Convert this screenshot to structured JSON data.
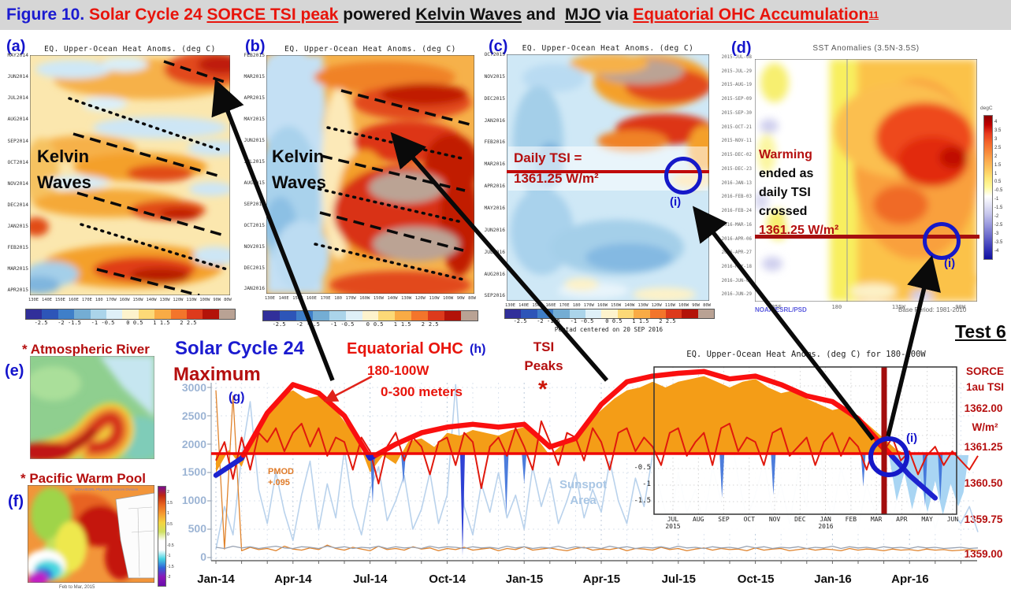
{
  "header": {
    "figure_label": "Figure 10.",
    "seg_red1": " Solar Cycle 24 ",
    "seg_red_underline": "SORCE TSI peak",
    "seg_black1": " powered ",
    "seg_kelvin": "Kelvin Waves",
    "seg_and": " and  ",
    "seg_mjo": "MJO",
    "seg_via": " via ",
    "seg_red2": "Equatorial OHC Accumulation",
    "superscript": "11"
  },
  "test_label": "Test 6",
  "chart_data": [
    {
      "id": "a",
      "type": "heatmap",
      "panel_label": "(a)",
      "title": "EQ. Upper-Ocean Heat Anoms. (deg C)",
      "annotation_line1": "Kelvin",
      "annotation_line2": "Waves",
      "y_labels": [
        "MAY2014",
        "JUN2014",
        "JUL2014",
        "AUG2014",
        "SEP2014",
        "OCT2014",
        "NOV2014",
        "DEC2014",
        "JAN2015",
        "FEB2015",
        "MAR2015",
        "APR2015"
      ],
      "x_labels": [
        "130E",
        "140E",
        "150E",
        "160E",
        "170E",
        "180",
        "170W",
        "160W",
        "150W",
        "140W",
        "130W",
        "120W",
        "110W",
        "100W",
        "90W",
        "80W"
      ],
      "colorbar_ticks": [
        "-2.5",
        "-2",
        "-1.5",
        "-1",
        "-0.5",
        "0",
        "0.5",
        "1",
        "1.5",
        "2",
        "2.5"
      ],
      "colorbar_colors": [
        "#312f9a",
        "#2d55b8",
        "#3f7fc9",
        "#74add4",
        "#abd4ea",
        "#dff0f8",
        "#fdf3cd",
        "#fcd977",
        "#f9ab45",
        "#f3752b",
        "#dd3a1c",
        "#b31309",
        "#b9a294"
      ]
    },
    {
      "id": "b",
      "type": "heatmap",
      "panel_label": "(b)",
      "title": "EQ. Upper-Ocean Heat Anoms. (deg C)",
      "annotation_line1": "Kelvin",
      "annotation_line2": "Waves",
      "y_labels": [
        "FEB2015",
        "MAR2015",
        "APR2015",
        "MAY2015",
        "JUN2015",
        "JUL2015",
        "AUG2015",
        "SEP2015",
        "OCT2015",
        "NOV2015",
        "DEC2015",
        "JAN2016"
      ],
      "x_labels": [
        "130E",
        "140E",
        "150E",
        "160E",
        "170E",
        "180",
        "170W",
        "160W",
        "150W",
        "140W",
        "130W",
        "120W",
        "110W",
        "100W",
        "90W",
        "80W"
      ],
      "colorbar_ticks": [
        "-2.5",
        "-2",
        "-1.5",
        "-1",
        "-0.5",
        "0",
        "0.5",
        "1",
        "1.5",
        "2",
        "2.5"
      ]
    },
    {
      "id": "c",
      "type": "heatmap",
      "panel_label": "(c)",
      "title": "EQ. Upper-Ocean Heat Anoms. (deg C)",
      "caption": "Pentad centered on 20 SEP 2016",
      "tsi_note_line1": "Daily TSI =",
      "tsi_note_line2": "1361.25 W/m²",
      "i_label": "(i)",
      "y_labels": [
        "OCT2015",
        "NOV2015",
        "DEC2015",
        "JAN2016",
        "FEB2016",
        "MAR2016",
        "APR2016",
        "MAY2016",
        "JUN2016",
        "JUL2016",
        "AUG2016",
        "SEP2016"
      ],
      "x_labels": [
        "130E",
        "140E",
        "150E",
        "160E",
        "170E",
        "180",
        "170W",
        "160W",
        "150W",
        "140W",
        "130W",
        "120W",
        "110W",
        "100W",
        "90W",
        "80W"
      ],
      "colorbar_ticks": [
        "-2.5",
        "-2",
        "-1.5",
        "-1",
        "-0.5",
        "0",
        "0.5",
        "1",
        "1.5",
        "2",
        "2.5"
      ]
    },
    {
      "id": "d",
      "type": "heatmap",
      "panel_label": "(d)",
      "title": "SST Anomalies (3.5N-3.5S)",
      "y_labels": [
        "2015-JUL-08",
        "2015-JUL-29",
        "2015-AUG-19",
        "2015-SEP-09",
        "2015-SEP-30",
        "2015-OCT-21",
        "2015-NOV-11",
        "2015-DEC-02",
        "2015-DEC-23",
        "2016-JAN-13",
        "2016-FEB-03",
        "2016-FEB-24",
        "2016-MAR-16",
        "2016-APR-06",
        "2016-APR-27",
        "2016-MAY-18",
        "2016-JUN-08",
        "2016-JUN-29"
      ],
      "x_labels": [
        "135E",
        "180",
        "135W",
        "90W"
      ],
      "colorbar_title": "degC",
      "colorbar_ticks": [
        "4",
        "3.5",
        "3",
        "2.5",
        "2",
        "1.5",
        "1",
        "0.5",
        "-0.5",
        "-1",
        "-1.5",
        "-2",
        "-2.5",
        "-3",
        "-3.5",
        "-4"
      ],
      "credit": "NOAA/ESRL/PSD",
      "base_period": "Base Period: 1981-2010",
      "note_line1": "Warming",
      "note_line2": "ended as",
      "note_line3": "daily TSI",
      "note_line4": "crossed",
      "note_line5": "1361.25 W/m²",
      "i_label": "(i)"
    },
    {
      "id": "g",
      "type": "line",
      "panel_label": "(g)",
      "labels": {
        "title_line1": "Solar Cycle 24",
        "title_line2": "Maximum",
        "ohc_label": "Equatorial OHC",
        "h_label": "(h)",
        "ohc_sub1": "180-100W",
        "ohc_sub2": "0-300 meters",
        "tsi_line1": "TSI",
        "tsi_line2": "Peaks",
        "asterisk": "*",
        "pmod_line1": "PMOD",
        "pmod_line2": "+.095",
        "sunspot_line1": "Sunspot",
        "sunspot_line2": "Area",
        "i_label": "(i)",
        "right_title1": "SORCE",
        "right_title2": "1au TSI",
        "right_unit": "W/m²"
      },
      "x_months_range": [
        "Jan-14",
        "Jun-16"
      ],
      "x_tick_labels": [
        "Jan-14",
        "Apr-14",
        "Jul-14",
        "Oct-14",
        "Jan-15",
        "Apr-15",
        "Jul-15",
        "Oct-15",
        "Jan-16",
        "Apr-16"
      ],
      "left_axis": {
        "title": "Sunspot Area",
        "ticks": [
          "3000",
          "2500",
          "2000",
          "1500",
          "1000",
          "500",
          "0"
        ]
      },
      "right_axis": {
        "title": "SORCE 1au TSI",
        "unit": "W/m²",
        "ticks": [
          "1362.00",
          "1361.25",
          "1360.50",
          "1359.75",
          "1359.00"
        ]
      },
      "reference_tsi": 1361.25,
      "series": {
        "ohc_smoothed": {
          "name": "Equatorial OHC 180-100W 0-300 m (smoothed, red above / blue below 1361.25 line)",
          "axis": "left",
          "dm": 1,
          "values": [
            1450,
            1750,
            2550,
            3050,
            2900,
            2500,
            1750,
            2000,
            2200,
            2300,
            2350,
            2300,
            2350,
            1950,
            2100,
            2700,
            3100,
            3200,
            3250,
            3280,
            3150,
            3200,
            3050,
            2850,
            2750,
            2450,
            1950,
            1450,
            1050
          ]
        },
        "ohc_daily_area": {
          "name": "Daily Equatorial OHC (orange area)",
          "axis": "left",
          "dm": 0.5,
          "values": [
            1500,
            1900,
            1600,
            2200,
            2600,
            2850,
            2950,
            2800,
            2850,
            2700,
            2400,
            2100,
            1500,
            1800,
            1650,
            2050,
            2100,
            1950,
            2200,
            2150,
            2250,
            2200,
            2150,
            2250,
            2300,
            2100,
            1800,
            2000,
            2150,
            2400,
            2600,
            2800,
            2950,
            3000,
            3100,
            3000,
            3100,
            3150,
            3200,
            3100,
            3000,
            3100,
            3150,
            3000,
            2900,
            2950,
            2800,
            2700,
            2600,
            2650,
            2500,
            2300,
            2100,
            1900,
            1806
          ]
        },
        "tsi_daily": {
          "name": "SORCE daily TSI",
          "axis": "right",
          "dm": 0.3333,
          "values": [
            1361.1,
            1361.5,
            1360.7,
            1361.6,
            1360.9,
            1361.7,
            1361.5,
            1361.8,
            1361.3,
            1361.7,
            1361.9,
            1361.4,
            1361.8,
            1361.2,
            1361.6,
            1361.5,
            1360.9,
            1361.6,
            1361.3,
            1360.6,
            1361.4,
            1361.7,
            1361.1,
            1361.6,
            1361.4,
            1360.8,
            1361.5,
            1361.6,
            1361.0,
            1361.7,
            1361.5,
            1360.5,
            1361.4,
            1361.6,
            1361.2,
            1361.8,
            1361.4,
            1360.9,
            1361.95,
            1361.5,
            1361.0,
            1361.7,
            1361.6,
            1361.1,
            1361.8,
            1361.5,
            1360.9,
            1361.7,
            1361.8,
            1361.3,
            1361.6,
            1361.4,
            1361.0,
            1361.7,
            1361.8,
            1361.2,
            1361.5,
            1361.7,
            1361.0,
            1361.8,
            1361.9,
            1361.3,
            1361.6,
            1361.5,
            1361.0,
            1361.7,
            1361.8,
            1361.2,
            1361.4,
            1361.6,
            1361.0,
            1361.5,
            1361.7,
            1361.2,
            1361.6,
            1361.4,
            1360.9,
            1361.5,
            1361.3,
            1361.6,
            1361.1,
            1361.3,
            1360.8,
            1361.2,
            1361.4,
            1361.0,
            1361.3,
            1361.1,
            1360.9,
            1361.2
          ]
        },
        "sunspot": {
          "name": "Sunspot Area",
          "axis": "left",
          "dm": 0.3333,
          "values": [
            150,
            900,
            400,
            1800,
            2750,
            1200,
            600,
            1500,
            800,
            300,
            1100,
            1700,
            500,
            1300,
            700,
            1900,
            900,
            400,
            1200,
            1600,
            650,
            1000,
            1450,
            500,
            850,
            1500,
            600,
            1100,
            3050,
            900,
            400,
            1300,
            800,
            1500,
            700,
            1100,
            500,
            1600,
            900,
            1400,
            600,
            1000,
            1500,
            700,
            1200,
            800,
            1700,
            1000,
            600,
            1400,
            900,
            1800,
            1100,
            500,
            1500,
            800,
            1200,
            600,
            1600,
            1000,
            2300,
            1400,
            700,
            1100,
            1700,
            800,
            1300,
            600,
            1500,
            900,
            3000,
            1200,
            700,
            1600,
            1000,
            500,
            1300,
            800,
            1100,
            600,
            1400,
            900,
            700,
            1200,
            500,
            1000,
            800,
            600,
            900,
            450
          ]
        },
        "pmod_floor": {
          "name": "PMOD +.095 (daily)",
          "axis": "left",
          "dm": 0.3333,
          "values": [
            2950,
            150,
            2850,
            120,
            180,
            140,
            160,
            120,
            200,
            150,
            130,
            170,
            140,
            220,
            160,
            130,
            180,
            150,
            120,
            200,
            140,
            160,
            130,
            190,
            150,
            170,
            120,
            160,
            140,
            180,
            130,
            150,
            170,
            120,
            160,
            140,
            190,
            130,
            150,
            170,
            140,
            120,
            160,
            180,
            130,
            150,
            140,
            170,
            120,
            160,
            150,
            130,
            180,
            140,
            160,
            120,
            150,
            170,
            130,
            160,
            140,
            150,
            120,
            170,
            130,
            150,
            160,
            120,
            140,
            160,
            130,
            150,
            140,
            120,
            160,
            130,
            150,
            140,
            120,
            150,
            130,
            140,
            120,
            150,
            130,
            140,
            120,
            130,
            140,
            120
          ]
        },
        "gray_floor": {
          "name": "reference (gray)",
          "axis": "left",
          "dm": 0.3333,
          "values": [
            180,
            160,
            200,
            170,
            190,
            160,
            180,
            200,
            170,
            160,
            190,
            180,
            160,
            200,
            170,
            190,
            160,
            180,
            170,
            200,
            160,
            190,
            170,
            180,
            160,
            200,
            170,
            190,
            180,
            160,
            190,
            170,
            180,
            160,
            200,
            170,
            190,
            160,
            180,
            170,
            200,
            160,
            190,
            170,
            180,
            160,
            200,
            170,
            190,
            160,
            180,
            170,
            190,
            160,
            200,
            170,
            180,
            160,
            190,
            170,
            180,
            160,
            200,
            170,
            190,
            160,
            180,
            170,
            190,
            160,
            180,
            170,
            200,
            160,
            190,
            170,
            180,
            160,
            190,
            170,
            180,
            160,
            190,
            170,
            180,
            160,
            170,
            180,
            160,
            170
          ]
        },
        "cool_spikes": [
          [
            6.1,
            950
          ],
          [
            7.3,
            1300
          ],
          [
            9.6,
            30
          ],
          [
            11.3,
            750
          ],
          [
            12.0,
            1300
          ],
          [
            19.7,
            1050
          ],
          [
            21.7,
            1100
          ],
          [
            25.2,
            1250
          ],
          [
            27.6,
            900
          ],
          [
            28.2,
            1000
          ]
        ],
        "cool_area": [
          [
            26.2,
            1806
          ],
          [
            26.5,
            1000
          ],
          [
            26.8,
            1500
          ],
          [
            27.1,
            850
          ],
          [
            27.4,
            1400
          ],
          [
            27.7,
            800
          ],
          [
            28.0,
            1350
          ],
          [
            28.3,
            750
          ],
          [
            28.6,
            1300
          ],
          [
            28.9,
            900
          ],
          [
            29.1,
            1150
          ],
          [
            29.3,
            1806
          ]
        ]
      },
      "inset": {
        "title": "EQ. Upper-Ocean Heat Anoms. (deg C) for 180-100W",
        "y_ticks": [
          "-0.5",
          "-1",
          "-1.5"
        ],
        "x_labels": [
          "JUL",
          "AUG",
          "SEP",
          "OCT",
          "NOV",
          "DEC",
          "JAN",
          "FEB",
          "MAR",
          "APR",
          "MAY",
          "JUN"
        ],
        "year1": "2015",
        "year2": "2016"
      }
    }
  ],
  "panel_e": {
    "label": "(e)",
    "title": "* Atmospheric River"
  },
  "panel_f": {
    "label": "(f)",
    "title": "* Pacific Warm Pool",
    "credit": "NOAA/ESRL Physical Sciences Division",
    "caption": "Feb to Mar, 2015",
    "colorbar_ticks": [
      "2",
      "1.5",
      "1",
      "0.5",
      "0",
      "-0.5",
      "-1",
      "-1.5",
      "-2"
    ]
  },
  "colors": {
    "accent_blue": "#1414cc",
    "accent_red": "#e8140b",
    "dark_red": "#b50f0f",
    "ohc_area": "#f49d17",
    "tsi_line": "#e0190d",
    "sunspot_line": "#b9d2ec",
    "pmod_line": "#e0832c",
    "cool_fill": "#a9d5f3",
    "ohc_cold": "#1d23cf"
  }
}
